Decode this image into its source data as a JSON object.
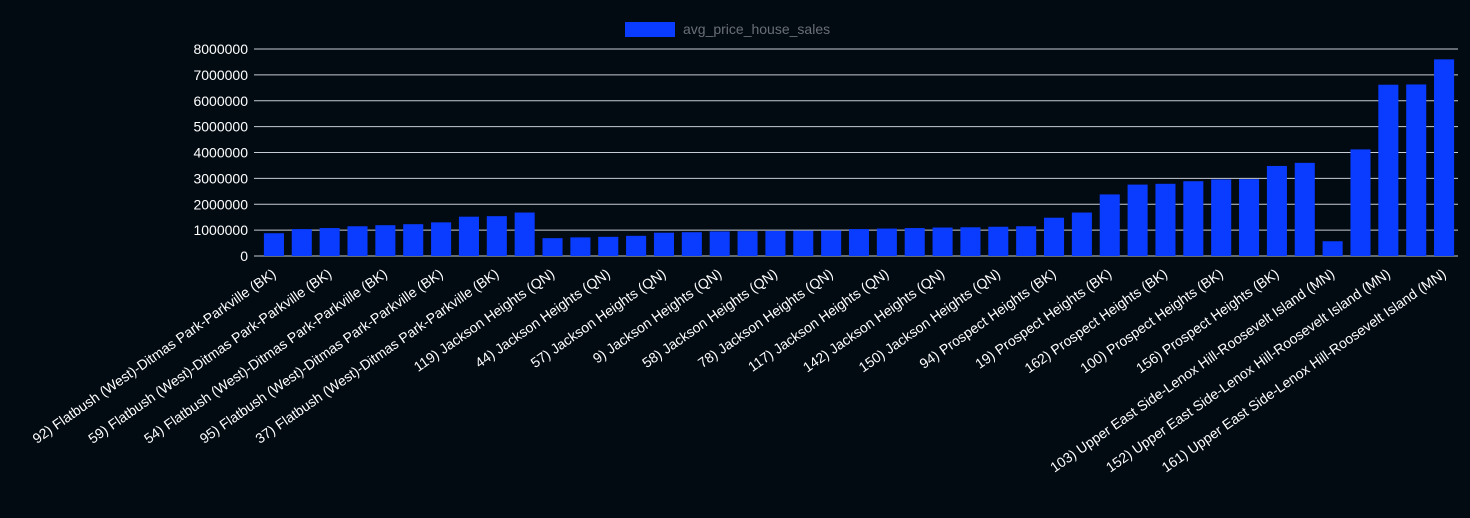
{
  "colors": {
    "background": "#020a12",
    "bar": "#0a3cff",
    "grid": "#c8ccd4",
    "tick_text": "#ffffff",
    "legend_text": "#6b6f76"
  },
  "chart_data": {
    "type": "bar",
    "legend_position": "top-center",
    "grid": true,
    "ylim": [
      0,
      8000000
    ],
    "yticks": [
      0,
      1000000,
      2000000,
      3000000,
      4000000,
      5000000,
      6000000,
      7000000,
      8000000
    ],
    "ytick_labels": [
      "0",
      "1000000",
      "2000000",
      "3000000",
      "4000000",
      "5000000",
      "6000000",
      "7000000",
      "8000000"
    ],
    "categories": [
      "92) Flatbush (West)-Ditmas Park-Parkville (BK)",
      "",
      "59) Flatbush (West)-Ditmas Park-Parkville (BK)",
      "",
      "54) Flatbush (West)-Ditmas Park-Parkville (BK)",
      "",
      "95) Flatbush (West)-Ditmas Park-Parkville (BK)",
      "",
      "37) Flatbush (West)-Ditmas Park-Parkville (BK)",
      "",
      "119) Jackson Heights (QN)",
      "",
      "44) Jackson Heights (QN)",
      "",
      "57) Jackson Heights (QN)",
      "",
      "9) Jackson Heights (QN)",
      "",
      "58) Jackson Heights (QN)",
      "",
      "78) Jackson Heights (QN)",
      "",
      "117) Jackson Heights (QN)",
      "",
      "142) Jackson Heights (QN)",
      "",
      "150) Jackson Heights (QN)",
      "",
      "94) Prospect Heights (BK)",
      "",
      "19) Prospect Heights (BK)",
      "",
      "162) Prospect Heights (BK)",
      "",
      "100) Prospect Heights (BK)",
      "",
      "156) Prospect Heights (BK)",
      "",
      "103) Upper East Side-Lenox Hill-Roosevelt Island (MN)",
      "",
      "152) Upper East Side-Lenox Hill-Roosevelt Island (MN)",
      "",
      "161) Upper East Side-Lenox Hill-Roosevelt Island (MN)"
    ],
    "series": [
      {
        "name": "avg_price_house_sales",
        "color": "#0a3cff",
        "values": [
          880000,
          1040000,
          1080000,
          1150000,
          1190000,
          1230000,
          1300000,
          1520000,
          1540000,
          1680000,
          690000,
          720000,
          740000,
          780000,
          900000,
          920000,
          950000,
          960000,
          970000,
          980000,
          990000,
          1040000,
          1060000,
          1080000,
          1100000,
          1110000,
          1130000,
          1150000,
          1480000,
          1680000,
          2380000,
          2760000,
          2790000,
          2890000,
          2960000,
          2970000,
          3480000,
          3600000,
          570000,
          4120000,
          6620000,
          6630000,
          7600000
        ]
      }
    ]
  }
}
